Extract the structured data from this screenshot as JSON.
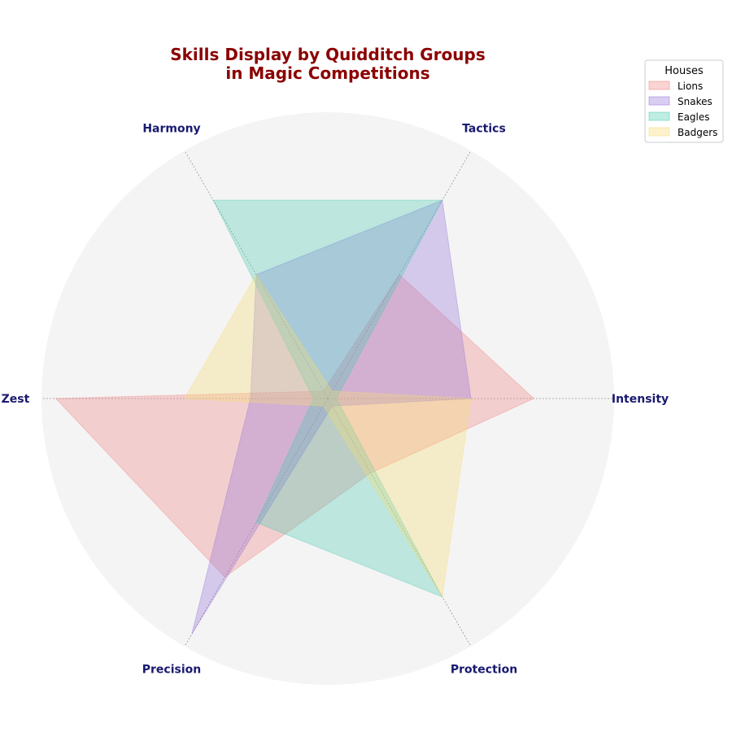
{
  "chart_data": {
    "type": "radar",
    "title_lines": [
      "Skills Display by Quidditch Groups",
      "in Magic Competitions"
    ],
    "axes": [
      "Intensity",
      "Tactics",
      "Harmony",
      "Zest",
      "Precision",
      "Protection"
    ],
    "rmax": 10,
    "grid": true,
    "legend_position": "top-right",
    "legend_title": "Houses",
    "series": [
      {
        "name": "Lions",
        "values": [
          7.2,
          5.0,
          0.3,
          9.5,
          7.2,
          3.0
        ]
      },
      {
        "name": "Snakes",
        "values": [
          5.0,
          8.0,
          5.0,
          2.7,
          9.5,
          0.3
        ]
      },
      {
        "name": "Eagles",
        "values": [
          0.3,
          8.0,
          8.0,
          0.5,
          5.0,
          8.0
        ]
      },
      {
        "name": "Badgers",
        "values": [
          5.0,
          0.3,
          5.0,
          5.0,
          0.3,
          8.0
        ]
      }
    ],
    "colors": {
      "Lions": "#f08080",
      "Snakes": "#9370db",
      "Eagles": "#48c9b0",
      "Badgers": "#f7dc6f",
      "title": "#8b0000",
      "axis_labels": "#191970",
      "background_disk": "#f4f4f4"
    }
  }
}
